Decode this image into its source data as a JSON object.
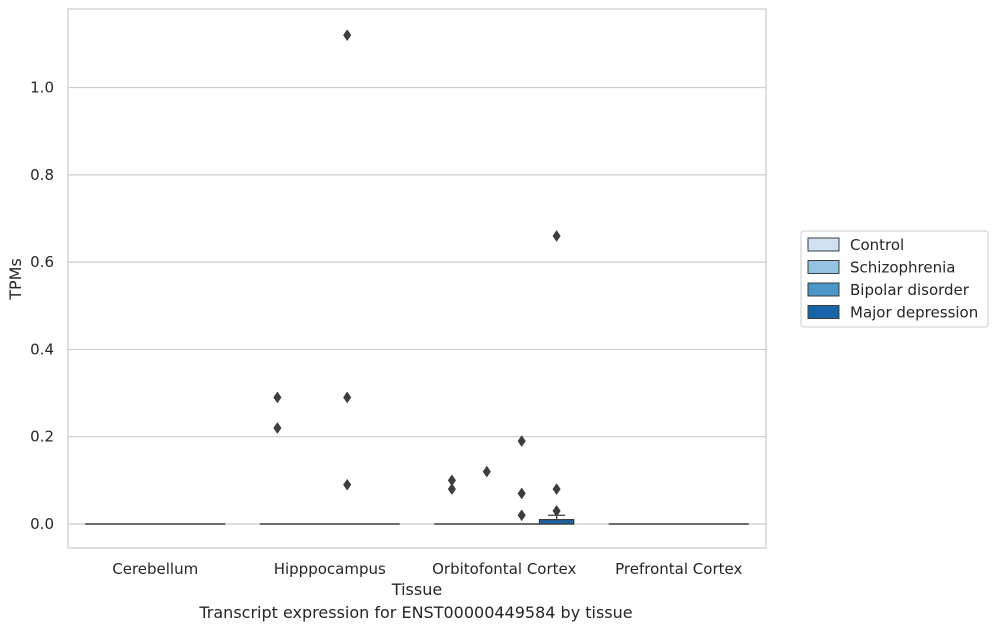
{
  "chart_data": {
    "type": "box",
    "xlabel": "Tissue",
    "ylabel": "TPMs",
    "categories": [
      "Cerebellum",
      "Hipppocampus",
      "Orbitofontal Cortex",
      "Prefrontal Cortex"
    ],
    "ylim": [
      -0.055,
      1.18
    ],
    "yticks": [
      0.0,
      0.2,
      0.4,
      0.6,
      0.8,
      1.0
    ],
    "ytick_labels": [
      "0.0",
      "0.2",
      "0.4",
      "0.6",
      "0.8",
      "1.0"
    ],
    "grid": true,
    "legend_position": "right",
    "series": [
      {
        "name": "Control",
        "color": "#d0e1f2",
        "boxes": [
          {
            "q1": 0,
            "median": 0,
            "q3": 0,
            "whisker_low": 0,
            "whisker_high": 0,
            "outliers": []
          },
          {
            "q1": 0,
            "median": 0,
            "q3": 0,
            "whisker_low": 0,
            "whisker_high": 0,
            "outliers": [
              0.29,
              0.22
            ]
          },
          {
            "q1": 0,
            "median": 0,
            "q3": 0,
            "whisker_low": 0,
            "whisker_high": 0,
            "outliers": [
              0.1,
              0.08
            ]
          },
          {
            "q1": 0,
            "median": 0,
            "q3": 0,
            "whisker_low": 0,
            "whisker_high": 0,
            "outliers": []
          }
        ]
      },
      {
        "name": "Schizophrenia",
        "color": "#94c4df",
        "boxes": [
          {
            "q1": 0,
            "median": 0,
            "q3": 0,
            "whisker_low": 0,
            "whisker_high": 0,
            "outliers": []
          },
          {
            "q1": 0,
            "median": 0,
            "q3": 0,
            "whisker_low": 0,
            "whisker_high": 0,
            "outliers": []
          },
          {
            "q1": 0,
            "median": 0,
            "q3": 0,
            "whisker_low": 0,
            "whisker_high": 0,
            "outliers": [
              0.12
            ]
          },
          {
            "q1": 0,
            "median": 0,
            "q3": 0,
            "whisker_low": 0,
            "whisker_high": 0,
            "outliers": []
          }
        ]
      },
      {
        "name": "Bipolar disorder",
        "color": "#4a98c9",
        "boxes": [
          {
            "q1": 0,
            "median": 0,
            "q3": 0,
            "whisker_low": 0,
            "whisker_high": 0,
            "outliers": []
          },
          {
            "q1": 0,
            "median": 0,
            "q3": 0,
            "whisker_low": 0,
            "whisker_high": 0,
            "outliers": [
              1.12,
              0.29,
              0.09
            ]
          },
          {
            "q1": 0,
            "median": 0,
            "q3": 0,
            "whisker_low": 0,
            "whisker_high": 0,
            "outliers": [
              0.19,
              0.07,
              0.02
            ]
          },
          {
            "q1": 0,
            "median": 0,
            "q3": 0,
            "whisker_low": 0,
            "whisker_high": 0,
            "outliers": []
          }
        ]
      },
      {
        "name": "Major depression",
        "color": "#1764ab",
        "boxes": [
          {
            "q1": 0,
            "median": 0,
            "q3": 0,
            "whisker_low": 0,
            "whisker_high": 0,
            "outliers": []
          },
          {
            "q1": 0,
            "median": 0,
            "q3": 0,
            "whisker_low": 0,
            "whisker_high": 0,
            "outliers": []
          },
          {
            "q1": 0,
            "median": 0,
            "q3": 0.01,
            "whisker_low": 0,
            "whisker_high": 0.02,
            "outliers": [
              0.66,
              0.08,
              0.03
            ]
          },
          {
            "q1": 0,
            "median": 0,
            "q3": 0,
            "whisker_low": 0,
            "whisker_high": 0,
            "outliers": []
          }
        ]
      }
    ]
  },
  "caption": "Transcript expression for ENST00000449584 by tissue"
}
